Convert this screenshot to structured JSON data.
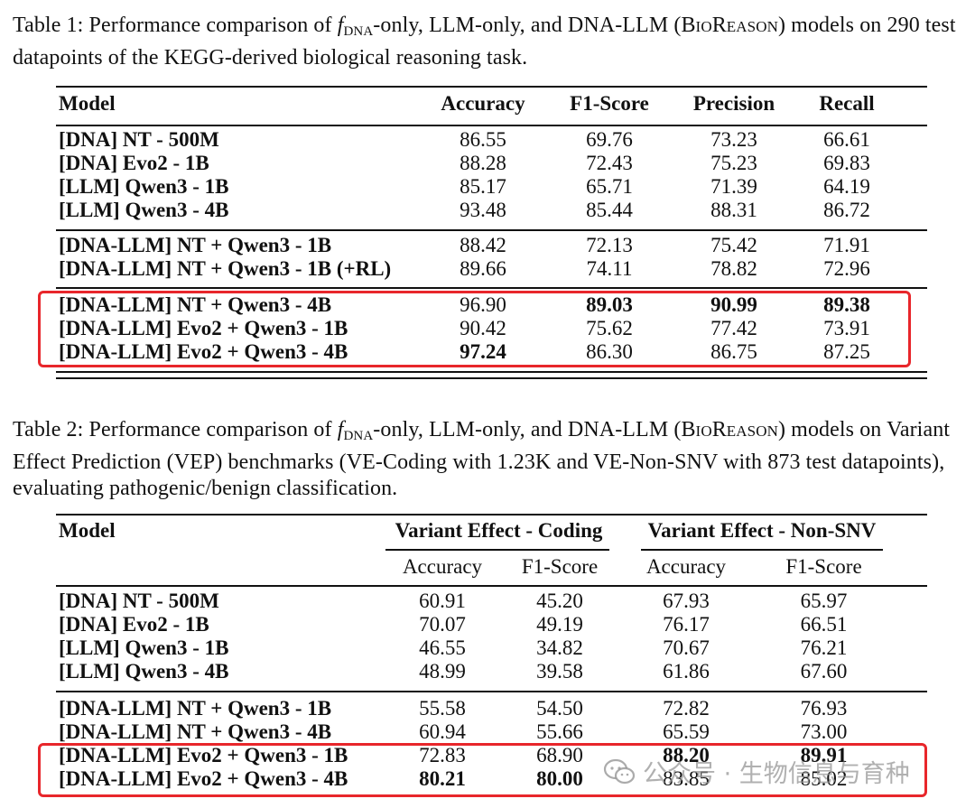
{
  "table1": {
    "caption_prefix": "Table 1: Performance comparison of ",
    "caption_f": "f",
    "caption_sub": "DNA",
    "caption_mid": "-only, LLM-only, and DNA-LLM (",
    "caption_sc": "BioReason",
    "caption_end": ") models on 290 test datapoints of the KEGG-derived biological reasoning task.",
    "headers": [
      "Model",
      "Accuracy",
      "F1-Score",
      "Precision",
      "Recall"
    ],
    "groups": [
      [
        {
          "model": "[DNA] NT - 500M",
          "values": [
            "86.55",
            "69.76",
            "73.23",
            "66.61"
          ],
          "bold": [
            false,
            false,
            false,
            false
          ]
        },
        {
          "model": "[DNA] Evo2 - 1B",
          "values": [
            "88.28",
            "72.43",
            "75.23",
            "69.83"
          ],
          "bold": [
            false,
            false,
            false,
            false
          ]
        },
        {
          "model": "[LLM] Qwen3 - 1B",
          "values": [
            "85.17",
            "65.71",
            "71.39",
            "64.19"
          ],
          "bold": [
            false,
            false,
            false,
            false
          ]
        },
        {
          "model": "[LLM] Qwen3 - 4B",
          "values": [
            "93.48",
            "85.44",
            "88.31",
            "86.72"
          ],
          "bold": [
            false,
            false,
            false,
            false
          ]
        }
      ],
      [
        {
          "model": "[DNA-LLM] NT + Qwen3 - 1B",
          "values": [
            "88.42",
            "72.13",
            "75.42",
            "71.91"
          ],
          "bold": [
            false,
            false,
            false,
            false
          ]
        },
        {
          "model": "[DNA-LLM] NT + Qwen3 - 1B (+RL)",
          "values": [
            "89.66",
            "74.11",
            "78.82",
            "72.96"
          ],
          "bold": [
            false,
            false,
            false,
            false
          ]
        }
      ],
      [
        {
          "model": "[DNA-LLM] NT + Qwen3 - 4B",
          "values": [
            "96.90",
            "89.03",
            "90.99",
            "89.38"
          ],
          "bold": [
            false,
            true,
            true,
            true
          ]
        },
        {
          "model": "[DNA-LLM] Evo2 + Qwen3 - 1B",
          "values": [
            "90.42",
            "75.62",
            "77.42",
            "73.91"
          ],
          "bold": [
            false,
            false,
            false,
            false
          ]
        },
        {
          "model": "[DNA-LLM] Evo2 + Qwen3 - 4B",
          "values": [
            "97.24",
            "86.30",
            "86.75",
            "87.25"
          ],
          "bold": [
            true,
            false,
            false,
            false
          ]
        }
      ]
    ]
  },
  "table2": {
    "caption_prefix": "Table 2: Performance comparison of ",
    "caption_f": "f",
    "caption_sub": "DNA",
    "caption_mid": "-only, LLM-only, and DNA-LLM (",
    "caption_sc": "BioReason",
    "caption_end": ") models on Variant Effect Prediction (VEP) benchmarks (VE-Coding with 1.23K and VE-Non-SNV with 873 test datapoints), evaluating pathogenic/benign classification.",
    "model_header": "Model",
    "group_headers": [
      "Variant Effect - Coding",
      "Variant Effect - Non-SNV"
    ],
    "sub_headers": [
      "Accuracy",
      "F1-Score",
      "Accuracy",
      "F1-Score"
    ],
    "groups": [
      [
        {
          "model": "[DNA] NT - 500M",
          "values": [
            "60.91",
            "45.20",
            "67.93",
            "65.97"
          ],
          "bold": [
            false,
            false,
            false,
            false
          ]
        },
        {
          "model": "[DNA] Evo2 - 1B",
          "values": [
            "70.07",
            "49.19",
            "76.17",
            "66.51"
          ],
          "bold": [
            false,
            false,
            false,
            false
          ]
        },
        {
          "model": "[LLM] Qwen3 - 1B",
          "values": [
            "46.55",
            "34.82",
            "70.67",
            "76.21"
          ],
          "bold": [
            false,
            false,
            false,
            false
          ]
        },
        {
          "model": "[LLM] Qwen3 - 4B",
          "values": [
            "48.99",
            "39.58",
            "61.86",
            "67.60"
          ],
          "bold": [
            false,
            false,
            false,
            false
          ]
        }
      ],
      [
        {
          "model": "[DNA-LLM] NT + Qwen3 - 1B",
          "values": [
            "55.58",
            "54.50",
            "72.82",
            "76.93"
          ],
          "bold": [
            false,
            false,
            false,
            false
          ]
        },
        {
          "model": "[DNA-LLM] NT + Qwen3 - 4B",
          "values": [
            "60.94",
            "55.66",
            "65.59",
            "73.00"
          ],
          "bold": [
            false,
            false,
            false,
            false
          ]
        },
        {
          "model": "[DNA-LLM] Evo2 + Qwen3 - 1B",
          "values": [
            "72.83",
            "68.90",
            "88.20",
            "89.91"
          ],
          "bold": [
            false,
            false,
            true,
            true
          ]
        },
        {
          "model": "[DNA-LLM] Evo2 + Qwen3 - 4B",
          "values": [
            "80.21",
            "80.00",
            "83.85",
            "85.02"
          ],
          "bold": [
            true,
            true,
            false,
            false
          ]
        }
      ]
    ]
  },
  "watermark": {
    "text": "公众号 · 生物信息与育种",
    "icon": "wechat-icon"
  },
  "colors": {
    "highlight_box": "#e8262b",
    "text": "#111111",
    "watermark": "#969696"
  }
}
